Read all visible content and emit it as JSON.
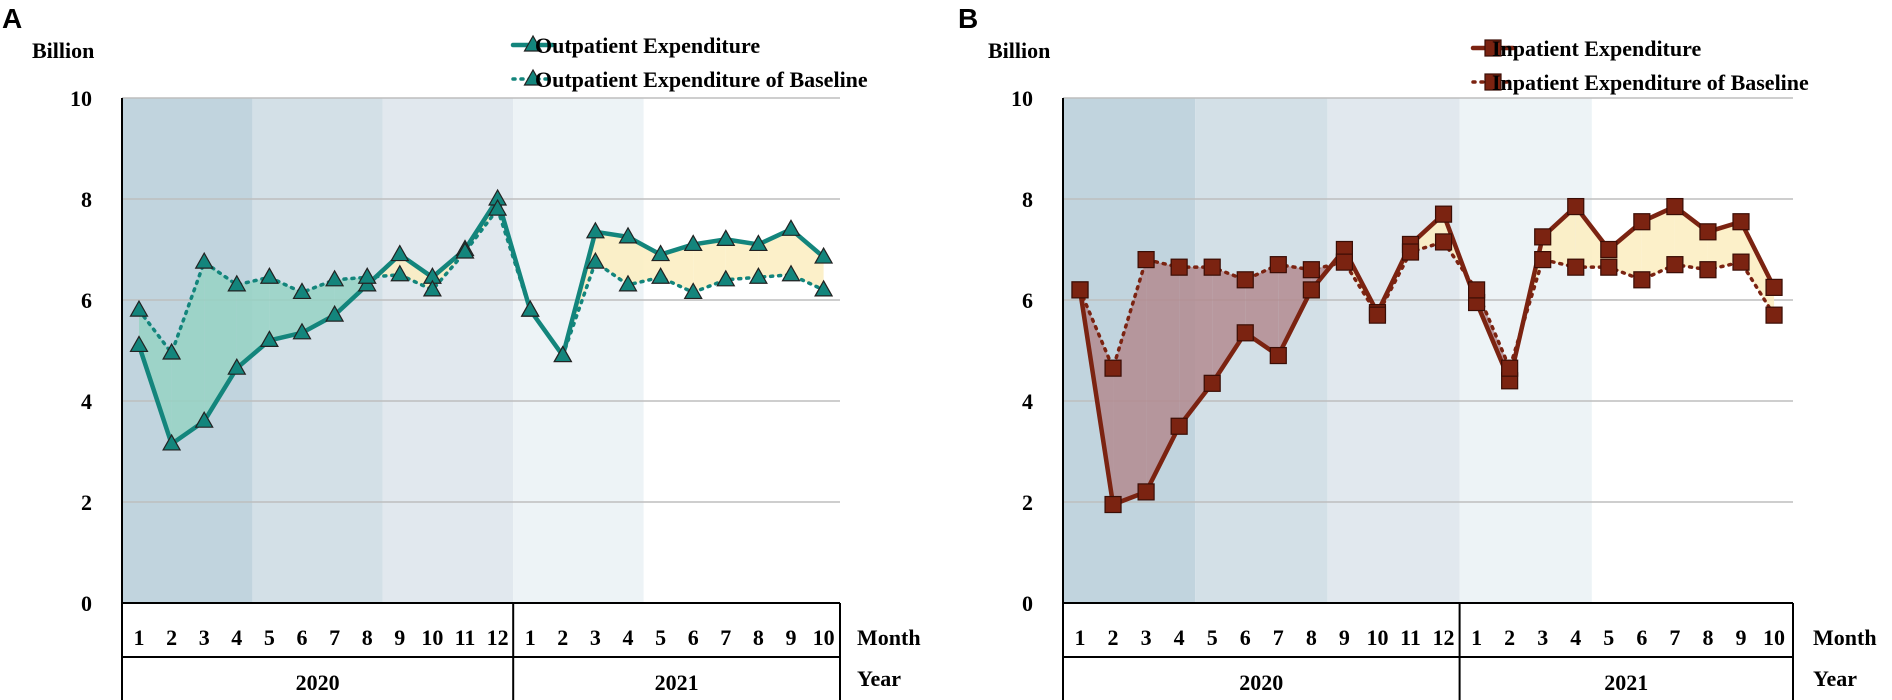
{
  "figure": {
    "panel_labels": [
      "A",
      "B"
    ],
    "y_unit": "Billion",
    "month_label": "Month",
    "year_label": "Year",
    "colors": {
      "outpatient": "#13857C",
      "outpatient_fill": "#96D2C4",
      "inpatient": "#7B2311",
      "inpatient_fill": "#B38B91",
      "above_fill": "#FCEDBF",
      "shade_1": "#C1D4DE",
      "shade_2": "#D3E0E7",
      "shade_3": "#E1E8EE",
      "shade_4": "#EDF3F6",
      "grid": "#BEBEBE"
    }
  },
  "chart_data": [
    {
      "type": "line",
      "panel": "A",
      "ylabel": "Billion",
      "ylim": [
        0,
        10
      ],
      "yticks": [
        0,
        2,
        4,
        6,
        8,
        10
      ],
      "grid": true,
      "legend": "top-right",
      "segments": [
        {
          "year": "2020",
          "months": [
            "1",
            "2",
            "3",
            "4",
            "5",
            "6",
            "7",
            "8",
            "9",
            "10",
            "11",
            "12"
          ]
        },
        {
          "year": "2021",
          "months": [
            "1",
            "2",
            "3",
            "4",
            "5",
            "6",
            "7",
            "8",
            "9",
            "10"
          ]
        }
      ],
      "series": [
        {
          "name": "Outpatient Expenditure",
          "style": "solid",
          "marker": "triangle",
          "values": [
            5.1,
            3.15,
            3.6,
            4.65,
            5.2,
            5.35,
            5.7,
            6.3,
            6.9,
            6.45,
            7.0,
            8.0,
            5.8,
            4.9,
            7.35,
            7.25,
            6.9,
            7.1,
            7.2,
            7.1,
            7.4,
            6.85
          ]
        },
        {
          "name": "Outpatient Expenditure of Baseline",
          "style": "dotted",
          "marker": "triangle",
          "values": [
            5.8,
            4.95,
            6.75,
            6.3,
            6.45,
            6.15,
            6.4,
            6.45,
            6.5,
            6.2,
            6.95,
            7.8,
            5.8,
            4.9,
            6.75,
            6.3,
            6.45,
            6.15,
            6.4,
            6.45,
            6.5,
            6.2
          ]
        }
      ]
    },
    {
      "type": "line",
      "panel": "B",
      "ylabel": "Billion",
      "ylim": [
        0,
        10
      ],
      "yticks": [
        0,
        2,
        4,
        6,
        8,
        10
      ],
      "grid": true,
      "legend": "top-right",
      "segments": [
        {
          "year": "2020",
          "months": [
            "1",
            "2",
            "3",
            "4",
            "5",
            "6",
            "7",
            "8",
            "9",
            "10",
            "11",
            "12"
          ]
        },
        {
          "year": "2021",
          "months": [
            "1",
            "2",
            "3",
            "4",
            "5",
            "6",
            "7",
            "8",
            "9",
            "10"
          ]
        }
      ],
      "series": [
        {
          "name": "Inpatient Expenditure",
          "style": "solid",
          "marker": "square",
          "values": [
            6.2,
            1.95,
            2.2,
            3.5,
            4.35,
            5.35,
            4.9,
            6.2,
            7.0,
            5.75,
            7.1,
            7.7,
            5.95,
            4.4,
            7.25,
            7.85,
            7.0,
            7.55,
            7.85,
            7.35,
            7.55,
            6.25
          ]
        },
        {
          "name": "Inpatient Expenditure of Baseline",
          "style": "dotted",
          "marker": "square",
          "values": [
            6.2,
            4.65,
            6.8,
            6.65,
            6.65,
            6.4,
            6.7,
            6.6,
            6.75,
            5.7,
            6.95,
            7.15,
            6.2,
            4.65,
            6.8,
            6.65,
            6.65,
            6.4,
            6.7,
            6.6,
            6.75,
            5.7
          ]
        }
      ]
    }
  ]
}
